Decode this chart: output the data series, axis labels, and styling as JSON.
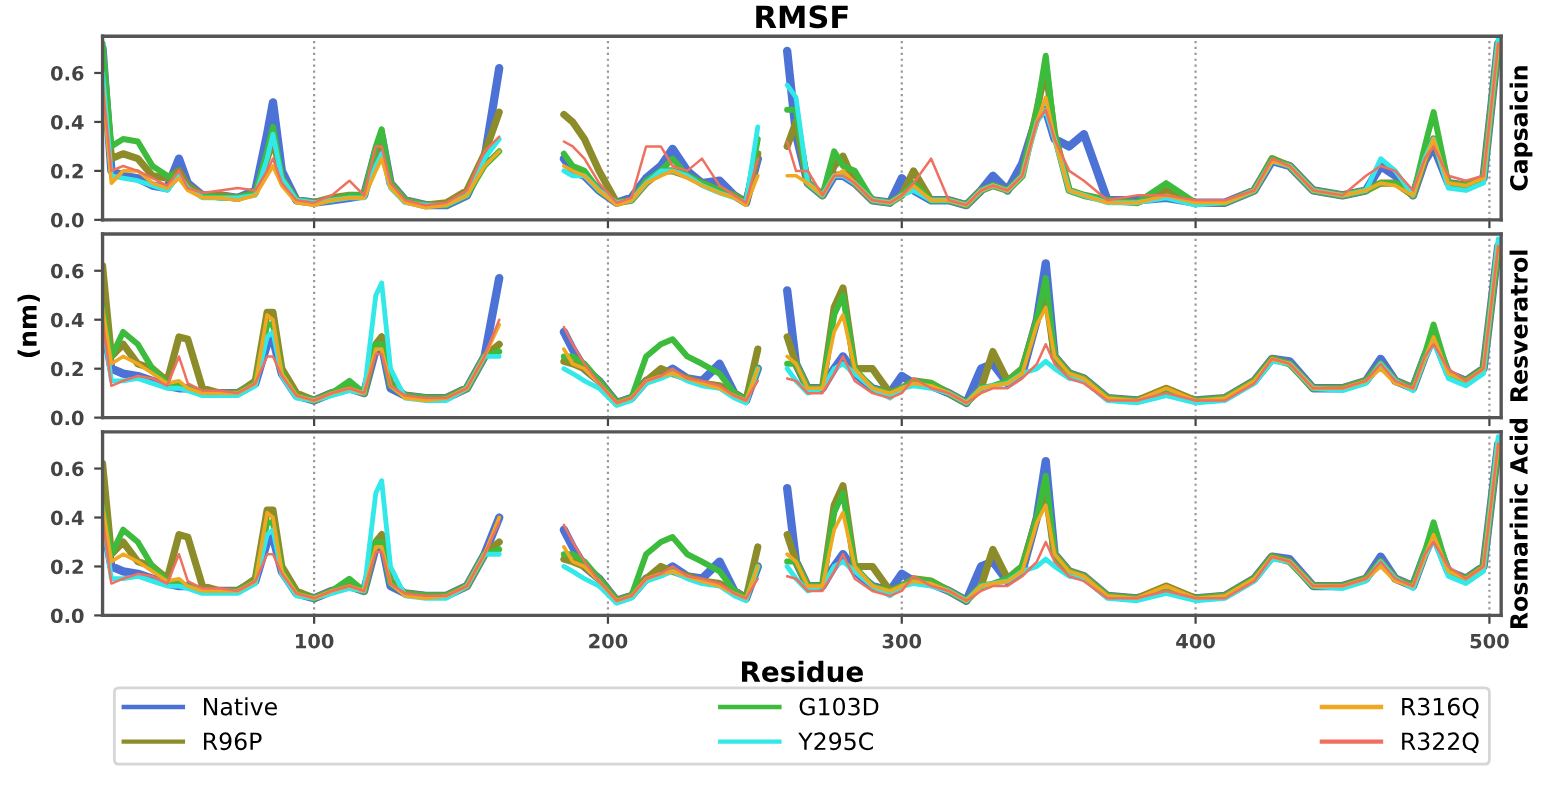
{
  "chart_data": [
    {
      "type": "line",
      "title": "RMSF",
      "y2label": "Capsaicin",
      "tick_labels": "y",
      "grid": "x",
      "line_style": "solid",
      "marker": "none",
      "xlim": [
        28,
        504
      ],
      "xticks": [
        100,
        200,
        300,
        400,
        500
      ],
      "ylim": [
        0,
        0.75
      ],
      "yticks": [
        {
          "value": 0,
          "label": "0.0"
        },
        {
          "value": 0.2,
          "label": "0.2"
        },
        {
          "value": 0.4,
          "label": "0.4"
        },
        {
          "value": 0.6,
          "label": "0.6"
        }
      ],
      "x": [
        28,
        31,
        35,
        40,
        45,
        50,
        54,
        57,
        62,
        68,
        74,
        80,
        84,
        86,
        89,
        94,
        100,
        106,
        112,
        117,
        121,
        123,
        126,
        131,
        138,
        145,
        152,
        158,
        163,
        174,
        185,
        188,
        192,
        197,
        203,
        208,
        213,
        218,
        222,
        227,
        232,
        238,
        243,
        247,
        251,
        256,
        261,
        264,
        268,
        273,
        277,
        280,
        284,
        290,
        296,
        300,
        304,
        310,
        316,
        322,
        327,
        331,
        336,
        341,
        346,
        349,
        352,
        357,
        362,
        370,
        380,
        390,
        400,
        410,
        420,
        426,
        432,
        440,
        450,
        458,
        463,
        468,
        474,
        478,
        481,
        486,
        492,
        498,
        503
      ],
      "series": [
        {
          "color": "#4c72d6",
          "values": [
            0.7,
            0.2,
            0.18,
            0.17,
            0.14,
            0.13,
            0.25,
            0.15,
            0.1,
            0.1,
            0.09,
            0.12,
            0.35,
            0.48,
            0.2,
            0.08,
            0.07,
            0.08,
            0.09,
            0.1,
            0.28,
            0.34,
            0.15,
            0.08,
            0.06,
            0.06,
            0.1,
            0.25,
            0.62,
            null,
            0.25,
            0.2,
            0.18,
            0.12,
            0.07,
            0.09,
            0.17,
            0.22,
            0.29,
            0.2,
            0.15,
            0.16,
            0.1,
            0.07,
            0.25,
            null,
            0.69,
            0.35,
            0.15,
            0.1,
            0.18,
            0.18,
            0.15,
            0.08,
            0.07,
            0.17,
            0.12,
            0.08,
            0.08,
            0.06,
            0.12,
            0.18,
            0.12,
            0.23,
            0.42,
            0.45,
            0.33,
            0.3,
            0.35,
            0.08,
            0.08,
            0.09,
            0.07,
            0.07,
            0.12,
            0.24,
            0.22,
            0.12,
            0.1,
            0.12,
            0.22,
            0.18,
            0.1,
            0.24,
            0.3,
            0.15,
            0.14,
            0.17,
            0.72
          ]
        },
        {
          "color": "#8c8c2a",
          "values": [
            0.68,
            0.25,
            0.27,
            0.25,
            0.18,
            0.17,
            0.2,
            0.14,
            0.1,
            0.1,
            0.09,
            0.11,
            0.25,
            0.33,
            0.17,
            0.08,
            0.07,
            0.09,
            0.1,
            0.1,
            0.28,
            0.33,
            0.15,
            0.08,
            0.06,
            0.07,
            0.12,
            0.27,
            0.44,
            null,
            0.43,
            0.4,
            0.33,
            0.2,
            0.07,
            0.08,
            0.15,
            0.2,
            0.2,
            0.18,
            0.15,
            0.12,
            0.1,
            0.07,
            0.27,
            null,
            0.3,
            0.4,
            0.15,
            0.1,
            0.22,
            0.26,
            0.15,
            0.08,
            0.07,
            0.1,
            0.2,
            0.08,
            0.08,
            0.06,
            0.12,
            0.14,
            0.12,
            0.18,
            0.45,
            0.62,
            0.35,
            0.12,
            0.1,
            0.08,
            0.07,
            0.12,
            0.07,
            0.07,
            0.12,
            0.25,
            0.22,
            0.12,
            0.1,
            0.12,
            0.15,
            0.15,
            0.1,
            0.25,
            0.33,
            0.15,
            0.14,
            0.17,
            0.72
          ]
        },
        {
          "color": "#3dbb3d",
          "values": [
            0.72,
            0.3,
            0.33,
            0.32,
            0.22,
            0.18,
            0.18,
            0.13,
            0.1,
            0.09,
            0.09,
            0.11,
            0.28,
            0.38,
            0.17,
            0.08,
            0.07,
            0.08,
            0.1,
            0.1,
            0.3,
            0.37,
            0.15,
            0.08,
            0.06,
            0.06,
            0.1,
            0.22,
            0.28,
            null,
            0.27,
            0.22,
            0.2,
            0.12,
            0.07,
            0.08,
            0.16,
            0.2,
            0.25,
            0.18,
            0.15,
            0.12,
            0.1,
            0.07,
            0.33,
            null,
            0.45,
            0.45,
            0.15,
            0.1,
            0.28,
            0.22,
            0.2,
            0.08,
            0.07,
            0.1,
            0.15,
            0.08,
            0.08,
            0.06,
            0.12,
            0.14,
            0.12,
            0.18,
            0.45,
            0.67,
            0.35,
            0.12,
            0.1,
            0.08,
            0.07,
            0.15,
            0.07,
            0.07,
            0.12,
            0.25,
            0.22,
            0.12,
            0.1,
            0.12,
            0.15,
            0.15,
            0.1,
            0.3,
            0.44,
            0.15,
            0.14,
            0.17,
            0.72
          ]
        },
        {
          "color": "#33e8e8",
          "values": [
            0.6,
            0.18,
            0.17,
            0.16,
            0.14,
            0.12,
            0.18,
            0.13,
            0.09,
            0.09,
            0.09,
            0.1,
            0.25,
            0.35,
            0.17,
            0.08,
            0.07,
            0.08,
            0.09,
            0.09,
            0.22,
            0.27,
            0.13,
            0.07,
            0.06,
            0.06,
            0.1,
            0.25,
            0.33,
            null,
            0.2,
            0.18,
            0.18,
            0.12,
            0.07,
            0.08,
            0.15,
            0.2,
            0.2,
            0.18,
            0.14,
            0.11,
            0.09,
            0.07,
            0.38,
            null,
            0.55,
            0.5,
            0.15,
            0.1,
            0.18,
            0.18,
            0.15,
            0.08,
            0.07,
            0.1,
            0.12,
            0.08,
            0.08,
            0.06,
            0.12,
            0.14,
            0.12,
            0.18,
            0.4,
            0.45,
            0.33,
            0.12,
            0.1,
            0.07,
            0.07,
            0.09,
            0.06,
            0.07,
            0.12,
            0.24,
            0.22,
            0.12,
            0.1,
            0.12,
            0.25,
            0.2,
            0.1,
            0.25,
            0.33,
            0.13,
            0.12,
            0.15,
            0.74
          ]
        },
        {
          "color": "#f0a820",
          "values": [
            0.55,
            0.15,
            0.2,
            0.2,
            0.15,
            0.13,
            0.17,
            0.12,
            0.09,
            0.09,
            0.08,
            0.1,
            0.18,
            0.22,
            0.14,
            0.07,
            0.06,
            0.08,
            0.09,
            0.09,
            0.2,
            0.25,
            0.13,
            0.07,
            0.05,
            0.06,
            0.1,
            0.22,
            0.28,
            null,
            0.22,
            0.2,
            0.18,
            0.12,
            0.06,
            0.08,
            0.15,
            0.18,
            0.2,
            0.17,
            0.14,
            0.11,
            0.09,
            0.06,
            0.18,
            null,
            0.18,
            0.18,
            0.15,
            0.1,
            0.18,
            0.2,
            0.15,
            0.08,
            0.07,
            0.1,
            0.14,
            0.08,
            0.08,
            0.06,
            0.12,
            0.14,
            0.12,
            0.18,
            0.4,
            0.5,
            0.33,
            0.12,
            0.1,
            0.07,
            0.07,
            0.1,
            0.07,
            0.07,
            0.12,
            0.24,
            0.22,
            0.12,
            0.1,
            0.12,
            0.15,
            0.14,
            0.1,
            0.24,
            0.33,
            0.15,
            0.14,
            0.17,
            0.72
          ]
        },
        {
          "color": "#f07060",
          "values": [
            0.55,
            0.2,
            0.22,
            0.2,
            0.17,
            0.14,
            0.2,
            0.13,
            0.11,
            0.12,
            0.13,
            0.12,
            0.2,
            0.25,
            0.15,
            0.08,
            0.07,
            0.1,
            0.16,
            0.1,
            0.3,
            0.3,
            0.15,
            0.08,
            0.06,
            0.07,
            0.12,
            0.28,
            0.34,
            null,
            0.32,
            0.3,
            0.25,
            0.15,
            0.07,
            0.09,
            0.3,
            0.3,
            0.22,
            0.2,
            0.25,
            0.14,
            0.1,
            0.07,
            0.25,
            null,
            0.32,
            0.2,
            0.2,
            0.1,
            0.18,
            0.18,
            0.15,
            0.08,
            0.07,
            0.1,
            0.15,
            0.25,
            0.08,
            0.06,
            0.12,
            0.14,
            0.12,
            0.18,
            0.4,
            0.45,
            0.33,
            0.2,
            0.16,
            0.08,
            0.1,
            0.1,
            0.08,
            0.08,
            0.12,
            0.25,
            0.22,
            0.12,
            0.1,
            0.18,
            0.22,
            0.2,
            0.12,
            0.25,
            0.3,
            0.18,
            0.16,
            0.18,
            0.72
          ]
        }
      ]
    },
    {
      "type": "line",
      "ylabel": "(nm)",
      "y2label": "Resveratrol",
      "tick_labels": "y",
      "grid": "x",
      "line_style": "solid",
      "marker": "none",
      "xlim": [
        28,
        504
      ],
      "xticks": [
        100,
        200,
        300,
        400,
        500
      ],
      "ylim": [
        0,
        0.75
      ],
      "yticks": [
        {
          "value": 0,
          "label": "0.0"
        },
        {
          "value": 0.2,
          "label": "0.2"
        },
        {
          "value": 0.4,
          "label": "0.4"
        },
        {
          "value": 0.6,
          "label": "0.6"
        }
      ],
      "x": [
        28,
        31,
        35,
        40,
        45,
        50,
        54,
        57,
        62,
        68,
        74,
        80,
        84,
        86,
        89,
        94,
        100,
        106,
        112,
        117,
        121,
        123,
        126,
        131,
        138,
        145,
        152,
        158,
        163,
        174,
        185,
        188,
        192,
        197,
        203,
        208,
        213,
        218,
        222,
        227,
        232,
        238,
        243,
        247,
        251,
        256,
        261,
        264,
        268,
        273,
        277,
        280,
        284,
        290,
        296,
        300,
        304,
        310,
        316,
        322,
        327,
        331,
        336,
        341,
        346,
        349,
        352,
        357,
        362,
        370,
        380,
        390,
        400,
        410,
        420,
        426,
        432,
        440,
        450,
        458,
        463,
        468,
        474,
        478,
        481,
        486,
        492,
        498,
        503
      ],
      "series": [
        {
          "color": "#4c72d6",
          "values": [
            0.4,
            0.2,
            0.18,
            0.17,
            0.15,
            0.13,
            0.12,
            0.12,
            0.1,
            0.1,
            0.1,
            0.14,
            0.3,
            0.32,
            0.18,
            0.09,
            0.07,
            0.1,
            0.12,
            0.1,
            0.28,
            0.3,
            0.12,
            0.09,
            0.08,
            0.08,
            0.12,
            0.25,
            0.57,
            null,
            0.35,
            0.28,
            0.2,
            0.15,
            0.06,
            0.08,
            0.15,
            0.17,
            0.2,
            0.16,
            0.15,
            0.22,
            0.1,
            0.07,
            0.2,
            null,
            0.52,
            0.22,
            0.12,
            0.12,
            0.2,
            0.25,
            0.18,
            0.12,
            0.1,
            0.17,
            0.14,
            0.13,
            0.1,
            0.06,
            0.2,
            0.22,
            0.14,
            0.18,
            0.4,
            0.63,
            0.25,
            0.18,
            0.16,
            0.08,
            0.07,
            0.1,
            0.07,
            0.08,
            0.15,
            0.24,
            0.23,
            0.12,
            0.12,
            0.15,
            0.24,
            0.15,
            0.12,
            0.25,
            0.33,
            0.18,
            0.15,
            0.2,
            0.7
          ]
        },
        {
          "color": "#8c8c2a",
          "values": [
            0.62,
            0.25,
            0.3,
            0.22,
            0.2,
            0.15,
            0.33,
            0.32,
            0.12,
            0.1,
            0.1,
            0.15,
            0.43,
            0.43,
            0.2,
            0.1,
            0.07,
            0.1,
            0.12,
            0.1,
            0.3,
            0.33,
            0.14,
            0.09,
            0.08,
            0.08,
            0.12,
            0.25,
            0.3,
            null,
            0.23,
            0.22,
            0.2,
            0.15,
            0.06,
            0.08,
            0.15,
            0.2,
            0.18,
            0.16,
            0.14,
            0.13,
            0.1,
            0.07,
            0.28,
            null,
            0.33,
            0.22,
            0.12,
            0.12,
            0.45,
            0.53,
            0.2,
            0.2,
            0.1,
            0.12,
            0.15,
            0.14,
            0.1,
            0.06,
            0.12,
            0.27,
            0.15,
            0.2,
            0.4,
            0.5,
            0.25,
            0.18,
            0.16,
            0.08,
            0.07,
            0.12,
            0.07,
            0.08,
            0.15,
            0.24,
            0.22,
            0.12,
            0.12,
            0.15,
            0.22,
            0.15,
            0.12,
            0.25,
            0.33,
            0.18,
            0.15,
            0.2,
            0.7
          ]
        },
        {
          "color": "#3dbb3d",
          "values": [
            0.45,
            0.25,
            0.35,
            0.3,
            0.2,
            0.14,
            0.13,
            0.12,
            0.1,
            0.1,
            0.1,
            0.14,
            0.38,
            0.38,
            0.18,
            0.09,
            0.07,
            0.1,
            0.15,
            0.1,
            0.3,
            0.3,
            0.13,
            0.09,
            0.08,
            0.08,
            0.12,
            0.25,
            0.27,
            null,
            0.25,
            0.25,
            0.22,
            0.15,
            0.06,
            0.08,
            0.25,
            0.3,
            0.32,
            0.25,
            0.22,
            0.18,
            0.1,
            0.07,
            0.2,
            null,
            0.22,
            0.22,
            0.12,
            0.12,
            0.42,
            0.5,
            0.2,
            0.12,
            0.1,
            0.12,
            0.15,
            0.14,
            0.1,
            0.06,
            0.12,
            0.13,
            0.15,
            0.2,
            0.4,
            0.57,
            0.25,
            0.18,
            0.16,
            0.08,
            0.07,
            0.1,
            0.07,
            0.08,
            0.15,
            0.24,
            0.22,
            0.12,
            0.12,
            0.15,
            0.22,
            0.15,
            0.12,
            0.26,
            0.38,
            0.18,
            0.15,
            0.2,
            0.7
          ]
        },
        {
          "color": "#33e8e8",
          "values": [
            0.4,
            0.15,
            0.15,
            0.16,
            0.14,
            0.12,
            0.12,
            0.11,
            0.09,
            0.09,
            0.09,
            0.13,
            0.33,
            0.35,
            0.17,
            0.08,
            0.07,
            0.09,
            0.11,
            0.1,
            0.5,
            0.55,
            0.2,
            0.08,
            0.07,
            0.07,
            0.12,
            0.25,
            0.25,
            null,
            0.2,
            0.18,
            0.15,
            0.12,
            0.05,
            0.07,
            0.14,
            0.16,
            0.18,
            0.15,
            0.13,
            0.12,
            0.08,
            0.06,
            0.2,
            null,
            0.2,
            0.15,
            0.1,
            0.12,
            0.2,
            0.22,
            0.18,
            0.12,
            0.08,
            0.12,
            0.13,
            0.12,
            0.1,
            0.06,
            0.12,
            0.13,
            0.14,
            0.18,
            0.2,
            0.23,
            0.2,
            0.16,
            0.15,
            0.07,
            0.06,
            0.09,
            0.06,
            0.07,
            0.14,
            0.23,
            0.22,
            0.12,
            0.11,
            0.14,
            0.22,
            0.15,
            0.11,
            0.24,
            0.31,
            0.16,
            0.13,
            0.18,
            0.73
          ]
        },
        {
          "color": "#f0a820",
          "values": [
            0.45,
            0.22,
            0.25,
            0.22,
            0.18,
            0.14,
            0.15,
            0.12,
            0.1,
            0.1,
            0.1,
            0.14,
            0.42,
            0.4,
            0.18,
            0.09,
            0.07,
            0.1,
            0.12,
            0.1,
            0.28,
            0.28,
            0.13,
            0.08,
            0.07,
            0.08,
            0.12,
            0.25,
            0.38,
            null,
            0.28,
            0.22,
            0.2,
            0.14,
            0.06,
            0.08,
            0.15,
            0.17,
            0.18,
            0.16,
            0.14,
            0.12,
            0.09,
            0.07,
            0.2,
            null,
            0.25,
            0.22,
            0.12,
            0.12,
            0.35,
            0.42,
            0.2,
            0.12,
            0.1,
            0.12,
            0.14,
            0.13,
            0.1,
            0.06,
            0.12,
            0.13,
            0.14,
            0.18,
            0.38,
            0.45,
            0.25,
            0.18,
            0.16,
            0.08,
            0.07,
            0.12,
            0.07,
            0.08,
            0.15,
            0.24,
            0.22,
            0.12,
            0.12,
            0.15,
            0.2,
            0.14,
            0.12,
            0.24,
            0.33,
            0.18,
            0.15,
            0.2,
            0.7
          ]
        },
        {
          "color": "#f07060",
          "values": [
            0.4,
            0.13,
            0.15,
            0.17,
            0.16,
            0.13,
            0.25,
            0.14,
            0.11,
            0.11,
            0.1,
            0.14,
            0.25,
            0.25,
            0.17,
            0.09,
            0.07,
            0.1,
            0.12,
            0.1,
            0.26,
            0.26,
            0.13,
            0.09,
            0.08,
            0.08,
            0.12,
            0.25,
            0.4,
            null,
            0.37,
            0.3,
            0.22,
            0.14,
            0.06,
            0.08,
            0.15,
            0.17,
            0.2,
            0.16,
            0.15,
            0.13,
            0.09,
            0.07,
            0.15,
            null,
            0.16,
            0.15,
            0.1,
            0.1,
            0.18,
            0.25,
            0.15,
            0.1,
            0.08,
            0.1,
            0.16,
            0.12,
            0.1,
            0.06,
            0.1,
            0.12,
            0.12,
            0.16,
            0.22,
            0.3,
            0.22,
            0.16,
            0.14,
            0.07,
            0.07,
            0.1,
            0.07,
            0.07,
            0.14,
            0.24,
            0.22,
            0.12,
            0.12,
            0.15,
            0.22,
            0.15,
            0.12,
            0.25,
            0.3,
            0.2,
            0.15,
            0.2,
            0.7
          ]
        }
      ]
    },
    {
      "type": "line",
      "xlabel": "Residue",
      "y2label": "Rosmarinic Acid",
      "grid": "x",
      "line_style": "solid",
      "marker": "none",
      "legend": "bottom",
      "xlim": [
        28,
        504
      ],
      "xticks": [
        100,
        200,
        300,
        400,
        500
      ],
      "ylim": [
        0,
        0.75
      ],
      "yticks": [
        {
          "value": 0,
          "label": "0.0"
        },
        {
          "value": 0.2,
          "label": "0.2"
        },
        {
          "value": 0.4,
          "label": "0.4"
        },
        {
          "value": 0.6,
          "label": "0.6"
        }
      ],
      "x": [
        28,
        31,
        35,
        40,
        45,
        50,
        54,
        57,
        62,
        68,
        74,
        80,
        84,
        86,
        89,
        94,
        100,
        106,
        112,
        117,
        121,
        123,
        126,
        131,
        138,
        145,
        152,
        158,
        163,
        174,
        185,
        188,
        192,
        197,
        203,
        208,
        213,
        218,
        222,
        227,
        232,
        238,
        243,
        247,
        251,
        256,
        261,
        264,
        268,
        273,
        277,
        280,
        284,
        290,
        296,
        300,
        304,
        310,
        316,
        322,
        327,
        331,
        336,
        341,
        346,
        349,
        352,
        357,
        362,
        370,
        380,
        390,
        400,
        410,
        420,
        426,
        432,
        440,
        450,
        458,
        463,
        468,
        474,
        478,
        481,
        486,
        492,
        498,
        503
      ],
      "series": [
        {
          "name": "Native",
          "color": "#4c72d6",
          "values": [
            0.4,
            0.2,
            0.18,
            0.17,
            0.15,
            0.13,
            0.12,
            0.12,
            0.1,
            0.1,
            0.1,
            0.14,
            0.3,
            0.32,
            0.18,
            0.09,
            0.07,
            0.1,
            0.12,
            0.1,
            0.28,
            0.3,
            0.12,
            0.09,
            0.08,
            0.08,
            0.12,
            0.25,
            0.4,
            null,
            0.35,
            0.28,
            0.2,
            0.15,
            0.06,
            0.08,
            0.15,
            0.17,
            0.2,
            0.16,
            0.15,
            0.22,
            0.1,
            0.07,
            0.2,
            null,
            0.52,
            0.22,
            0.12,
            0.12,
            0.2,
            0.25,
            0.18,
            0.12,
            0.1,
            0.17,
            0.14,
            0.13,
            0.1,
            0.06,
            0.2,
            0.22,
            0.14,
            0.18,
            0.4,
            0.63,
            0.25,
            0.18,
            0.16,
            0.08,
            0.07,
            0.1,
            0.07,
            0.08,
            0.15,
            0.24,
            0.23,
            0.12,
            0.12,
            0.15,
            0.24,
            0.15,
            0.12,
            0.25,
            0.33,
            0.18,
            0.15,
            0.2,
            0.7
          ]
        },
        {
          "name": "R96P",
          "color": "#8c8c2a",
          "values": [
            0.62,
            0.25,
            0.3,
            0.22,
            0.2,
            0.15,
            0.33,
            0.32,
            0.12,
            0.1,
            0.1,
            0.15,
            0.43,
            0.43,
            0.2,
            0.1,
            0.07,
            0.1,
            0.12,
            0.1,
            0.3,
            0.33,
            0.14,
            0.09,
            0.08,
            0.08,
            0.12,
            0.25,
            0.3,
            null,
            0.23,
            0.22,
            0.2,
            0.15,
            0.06,
            0.08,
            0.15,
            0.2,
            0.18,
            0.16,
            0.14,
            0.13,
            0.1,
            0.07,
            0.28,
            null,
            0.33,
            0.22,
            0.12,
            0.12,
            0.45,
            0.53,
            0.2,
            0.2,
            0.1,
            0.12,
            0.15,
            0.14,
            0.1,
            0.06,
            0.12,
            0.27,
            0.15,
            0.2,
            0.4,
            0.5,
            0.25,
            0.18,
            0.16,
            0.08,
            0.07,
            0.12,
            0.07,
            0.08,
            0.15,
            0.24,
            0.22,
            0.12,
            0.12,
            0.15,
            0.22,
            0.15,
            0.12,
            0.25,
            0.33,
            0.18,
            0.15,
            0.2,
            0.7
          ]
        },
        {
          "name": "G103D",
          "color": "#3dbb3d",
          "values": [
            0.45,
            0.25,
            0.35,
            0.3,
            0.2,
            0.14,
            0.13,
            0.12,
            0.1,
            0.1,
            0.1,
            0.14,
            0.38,
            0.38,
            0.18,
            0.09,
            0.07,
            0.1,
            0.15,
            0.1,
            0.3,
            0.3,
            0.13,
            0.09,
            0.08,
            0.08,
            0.12,
            0.25,
            0.27,
            null,
            0.25,
            0.25,
            0.22,
            0.15,
            0.06,
            0.08,
            0.25,
            0.3,
            0.32,
            0.25,
            0.22,
            0.18,
            0.1,
            0.07,
            0.2,
            null,
            0.22,
            0.22,
            0.12,
            0.12,
            0.42,
            0.5,
            0.2,
            0.12,
            0.1,
            0.12,
            0.15,
            0.14,
            0.1,
            0.06,
            0.12,
            0.13,
            0.15,
            0.2,
            0.4,
            0.57,
            0.25,
            0.18,
            0.16,
            0.08,
            0.07,
            0.1,
            0.07,
            0.08,
            0.15,
            0.24,
            0.22,
            0.12,
            0.12,
            0.15,
            0.22,
            0.15,
            0.12,
            0.26,
            0.38,
            0.18,
            0.15,
            0.2,
            0.7
          ]
        },
        {
          "name": "Y295C",
          "color": "#33e8e8",
          "values": [
            0.4,
            0.15,
            0.15,
            0.16,
            0.14,
            0.12,
            0.12,
            0.11,
            0.09,
            0.09,
            0.09,
            0.13,
            0.33,
            0.35,
            0.17,
            0.08,
            0.07,
            0.09,
            0.11,
            0.1,
            0.5,
            0.55,
            0.2,
            0.08,
            0.07,
            0.07,
            0.12,
            0.25,
            0.25,
            null,
            0.2,
            0.18,
            0.15,
            0.12,
            0.05,
            0.07,
            0.14,
            0.16,
            0.18,
            0.15,
            0.13,
            0.12,
            0.08,
            0.06,
            0.2,
            null,
            0.2,
            0.15,
            0.1,
            0.12,
            0.2,
            0.22,
            0.18,
            0.12,
            0.08,
            0.12,
            0.13,
            0.12,
            0.1,
            0.06,
            0.12,
            0.13,
            0.14,
            0.18,
            0.2,
            0.23,
            0.2,
            0.16,
            0.15,
            0.07,
            0.06,
            0.09,
            0.06,
            0.07,
            0.14,
            0.23,
            0.22,
            0.12,
            0.11,
            0.14,
            0.22,
            0.15,
            0.11,
            0.24,
            0.31,
            0.16,
            0.13,
            0.18,
            0.73
          ]
        },
        {
          "name": "R316Q",
          "color": "#f0a820",
          "values": [
            0.45,
            0.22,
            0.25,
            0.22,
            0.18,
            0.14,
            0.15,
            0.12,
            0.1,
            0.1,
            0.1,
            0.14,
            0.42,
            0.4,
            0.18,
            0.09,
            0.07,
            0.1,
            0.12,
            0.1,
            0.28,
            0.28,
            0.13,
            0.08,
            0.07,
            0.08,
            0.12,
            0.25,
            0.4,
            null,
            0.28,
            0.22,
            0.2,
            0.14,
            0.06,
            0.08,
            0.15,
            0.17,
            0.18,
            0.16,
            0.14,
            0.12,
            0.09,
            0.07,
            0.2,
            null,
            0.25,
            0.22,
            0.12,
            0.12,
            0.35,
            0.42,
            0.2,
            0.12,
            0.1,
            0.12,
            0.14,
            0.13,
            0.1,
            0.06,
            0.12,
            0.13,
            0.14,
            0.18,
            0.38,
            0.45,
            0.25,
            0.18,
            0.16,
            0.08,
            0.07,
            0.12,
            0.07,
            0.08,
            0.15,
            0.24,
            0.22,
            0.12,
            0.12,
            0.15,
            0.2,
            0.14,
            0.12,
            0.24,
            0.33,
            0.18,
            0.15,
            0.2,
            0.7
          ]
        },
        {
          "name": "R322Q",
          "color": "#f07060",
          "values": [
            0.4,
            0.13,
            0.15,
            0.17,
            0.16,
            0.13,
            0.25,
            0.14,
            0.11,
            0.11,
            0.1,
            0.14,
            0.25,
            0.25,
            0.17,
            0.09,
            0.07,
            0.1,
            0.12,
            0.1,
            0.26,
            0.26,
            0.13,
            0.09,
            0.08,
            0.08,
            0.12,
            0.25,
            0.38,
            null,
            0.37,
            0.3,
            0.22,
            0.14,
            0.06,
            0.08,
            0.15,
            0.17,
            0.2,
            0.16,
            0.15,
            0.13,
            0.09,
            0.07,
            0.15,
            null,
            0.16,
            0.15,
            0.1,
            0.1,
            0.18,
            0.25,
            0.15,
            0.1,
            0.08,
            0.1,
            0.16,
            0.12,
            0.1,
            0.06,
            0.1,
            0.12,
            0.12,
            0.16,
            0.22,
            0.3,
            0.22,
            0.16,
            0.14,
            0.07,
            0.07,
            0.1,
            0.07,
            0.07,
            0.14,
            0.24,
            0.22,
            0.12,
            0.12,
            0.15,
            0.22,
            0.15,
            0.12,
            0.25,
            0.3,
            0.2,
            0.15,
            0.2,
            0.7
          ]
        }
      ]
    }
  ]
}
